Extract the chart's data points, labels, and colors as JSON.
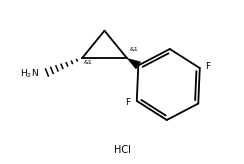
{
  "background": "#ffffff",
  "line_color": "#000000",
  "line_width": 1.3,
  "font_size_label": 6.5,
  "font_size_stereo": 5.0,
  "hcl_text": "HCl",
  "h2n_text": "H$_2$N",
  "stereo1": "&1",
  "stereo2": "&1",
  "F1_label": "F",
  "F2_label": "F",
  "figsize": [
    2.44,
    1.64
  ],
  "dpi": 100,
  "xlim": [
    0.0,
    9.0
  ],
  "ylim": [
    0.0,
    6.5
  ]
}
